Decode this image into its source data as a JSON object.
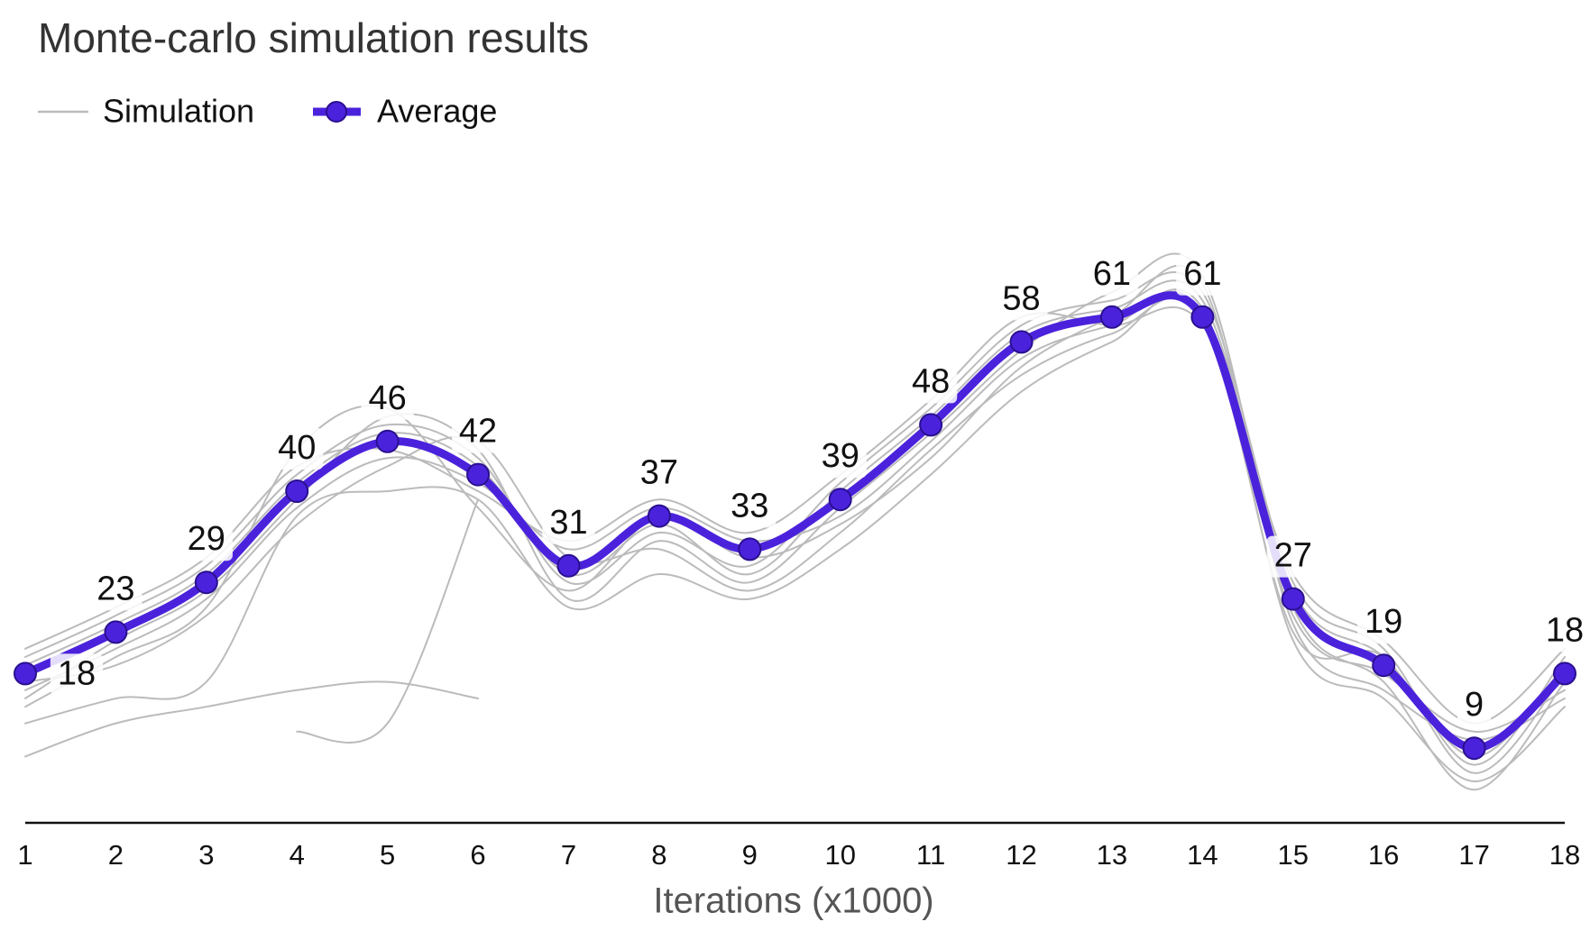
{
  "chart_data": {
    "type": "line",
    "title": "Monte-carlo simulation results",
    "x_label": "Iterations (x1000)",
    "x": [
      1,
      2,
      3,
      4,
      5,
      6,
      7,
      8,
      9,
      10,
      11,
      12,
      13,
      14,
      15,
      16,
      17,
      18
    ],
    "xlim": [
      1,
      18
    ],
    "xticks": [
      1,
      2,
      3,
      4,
      5,
      6,
      7,
      8,
      9,
      10,
      11,
      12,
      13,
      14,
      15,
      16,
      17,
      18
    ],
    "ylim": [
      0,
      75
    ],
    "series": [
      {
        "name": "Simulation",
        "color": "#bbbbbb",
        "runs": [
          [
            20,
            25,
            31,
            42,
            48,
            44,
            29,
            35,
            31,
            41,
            50,
            60,
            63,
            64,
            29,
            21,
            7,
            20
          ],
          [
            16,
            21,
            27,
            38,
            44,
            41,
            33,
            38,
            34,
            37,
            46,
            56,
            60,
            62,
            25,
            18,
            11,
            16
          ],
          [
            19,
            24,
            30,
            41,
            47,
            43,
            30,
            36,
            30,
            40,
            49,
            59,
            62,
            63,
            28,
            20,
            8,
            19
          ],
          [
            15,
            22,
            28,
            39,
            49,
            45,
            27,
            34,
            29,
            38,
            47,
            57,
            64,
            66,
            26,
            17,
            4,
            17
          ],
          [
            21,
            26,
            32,
            43,
            45,
            40,
            34,
            39,
            35,
            42,
            51,
            61,
            60,
            60,
            30,
            22,
            12,
            21
          ],
          [
            14,
            20,
            26,
            45,
            50,
            38,
            28,
            37,
            32,
            36,
            44,
            55,
            61,
            65,
            24,
            16,
            10,
            15
          ],
          [
            17,
            19,
            25,
            36,
            43,
            46,
            32,
            33,
            28,
            35,
            45,
            54,
            59,
            61,
            23,
            20,
            6,
            18
          ],
          [
            12,
            15,
            17,
            37,
            40,
            39,
            26,
            30,
            27,
            33,
            42,
            52,
            58,
            62,
            22,
            15,
            5,
            14
          ],
          [
            8,
            12,
            14,
            16,
            17,
            15,
            null,
            null,
            null,
            null,
            null,
            null,
            null,
            null,
            null,
            null,
            null,
            null
          ],
          [
            null,
            null,
            null,
            11,
            12,
            39,
            null,
            null,
            null,
            null,
            null,
            null,
            null,
            null,
            null,
            null,
            null,
            null
          ]
        ]
      },
      {
        "name": "Average",
        "color": "#4b22dc",
        "values": [
          18,
          23,
          29,
          40,
          46,
          42,
          31,
          37,
          33,
          39,
          48,
          58,
          61,
          61,
          27,
          19,
          9,
          18
        ]
      }
    ]
  }
}
